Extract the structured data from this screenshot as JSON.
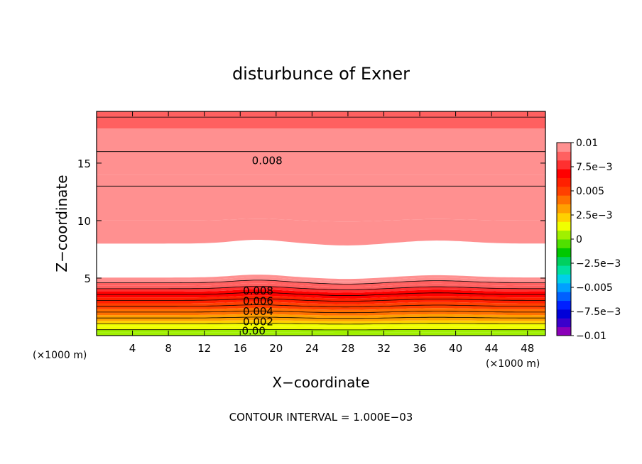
{
  "chart_data": {
    "type": "contour",
    "title": "disturbunce of Exner",
    "xlabel": "X−coordinate",
    "ylabel": "Z−coordinate",
    "x_unit": "(×1000 m)",
    "y_unit": "(×1000 m)",
    "footer": "CONTOUR INTERVAL = 1.000E−03",
    "xlim": [
      0,
      50
    ],
    "ylim": [
      0,
      19.5
    ],
    "x_ticks": [
      4,
      8,
      12,
      16,
      20,
      24,
      28,
      32,
      36,
      40,
      44,
      48
    ],
    "y_ticks": [
      5,
      10,
      15
    ],
    "x_tick_labels": [
      "4",
      "8",
      "12",
      "16",
      "20",
      "24",
      "28",
      "32",
      "36",
      "40",
      "44",
      "48"
    ],
    "y_tick_labels": [
      "5",
      "10",
      "15"
    ],
    "contour_interval": 0.001,
    "contour_labels": [
      {
        "text": "0.008",
        "x": 19,
        "z": 15.2
      },
      {
        "text": "0.008",
        "x": 18,
        "z": 3.9
      },
      {
        "text": "0.006",
        "x": 18,
        "z": 3.0
      },
      {
        "text": "0.004",
        "x": 18,
        "z": 2.1
      },
      {
        "text": "0.002",
        "x": 18,
        "z": 1.2
      },
      {
        "text": "0.00",
        "x": 17.5,
        "z": 0.4
      }
    ],
    "colorbar": {
      "min": -0.01,
      "max": 0.01,
      "tick_values": [
        0.01,
        0.0075,
        0.005,
        0.0025,
        0,
        -0.0025,
        -0.005,
        -0.0075,
        -0.01
      ],
      "tick_labels": [
        "0.01",
        "7.5e−3",
        "0.005",
        "2.5e−3",
        "0",
        "−2.5e−3",
        "−0.005",
        "−7.5e−3",
        "−0.01"
      ],
      "colors": [
        "#8a00b8",
        "#3a00cc",
        "#0000d8",
        "#0020ff",
        "#0060ff",
        "#00a0ff",
        "#00d0e8",
        "#00e0a0",
        "#00d060",
        "#00c800",
        "#50e000",
        "#a0f000",
        "#f0ff00",
        "#ffd000",
        "#ffa000",
        "#ff7000",
        "#ff4000",
        "#ff2000",
        "#ff0000",
        "#ff3030",
        "#ff6060",
        "#ff9090"
      ]
    },
    "field_model": "upper band: value increases with height toward 0.0095; lower band: value decreases from ~0.0098 at z=5 to ~0 at z=0; blank (above 0.01) between z≈5 and z≈9"
  }
}
